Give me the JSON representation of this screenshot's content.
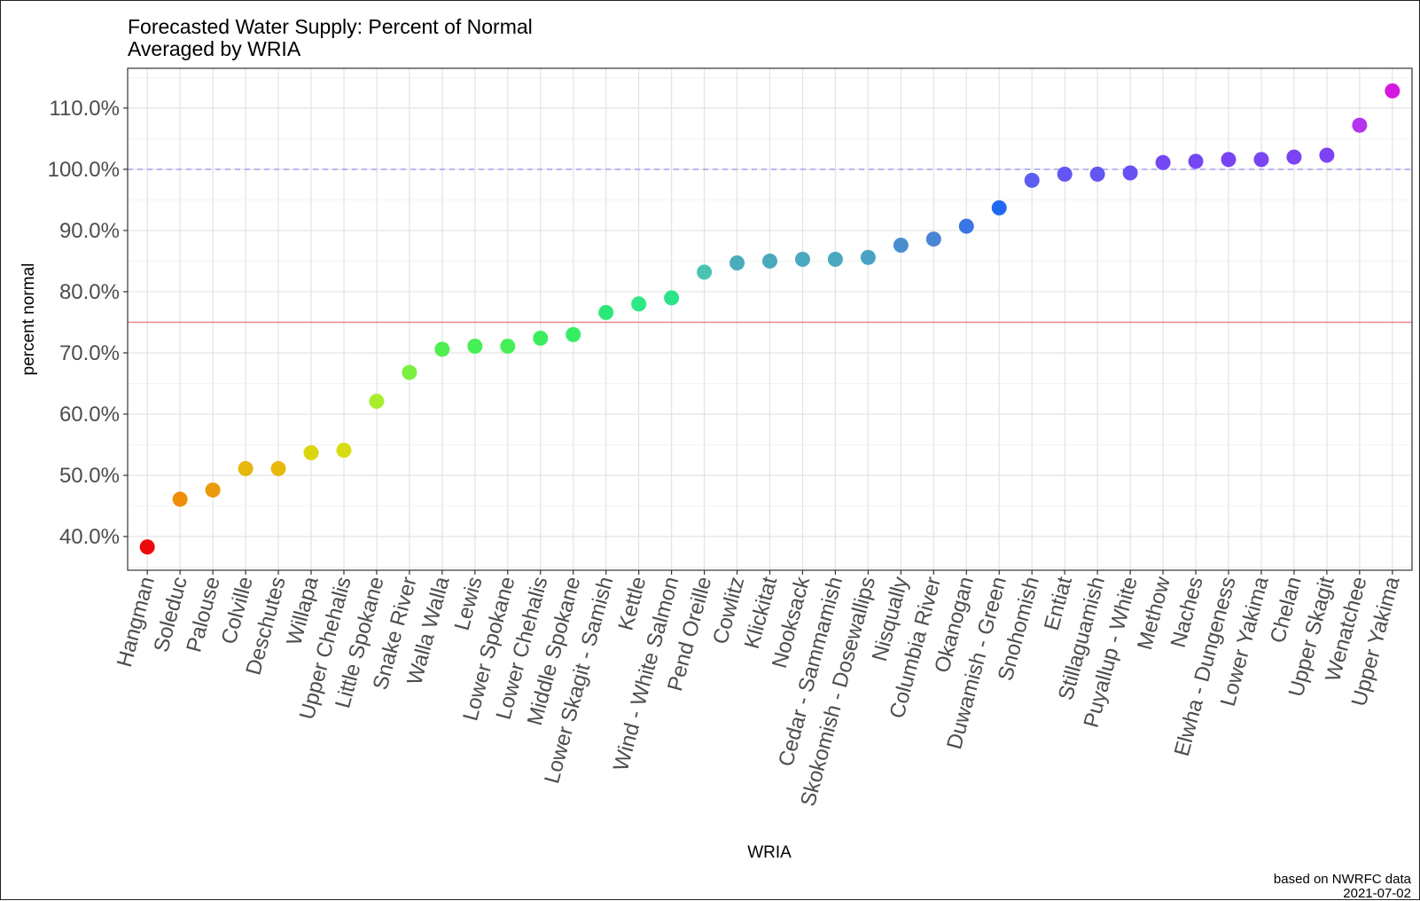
{
  "chart_data": {
    "type": "scatter",
    "title": "Forecasted Water Supply:  Percent of Normal",
    "subtitle": "Averaged by WRIA",
    "xlabel": "WRIA",
    "ylabel": "percent normal",
    "caption_line1": "based on NWRFC data",
    "caption_line2": "2021-07-02",
    "ylim": [
      34.5,
      116.5
    ],
    "yticks": [
      40,
      50,
      60,
      70,
      80,
      90,
      100,
      110
    ],
    "ytick_labels": [
      "40.0%",
      "50.0%",
      "60.0%",
      "70.0%",
      "80.0%",
      "90.0%",
      "100.0%",
      "110.0%"
    ],
    "reference_lines": [
      {
        "y": 100,
        "style": "dashed",
        "color": "#9a9af0"
      },
      {
        "y": 75,
        "style": "solid",
        "color": "#f08080"
      }
    ],
    "grid": true,
    "categories": [
      "Hangman",
      "Soleduc",
      "Palouse",
      "Colville",
      "Deschutes",
      "Willapa",
      "Upper Chehalis",
      "Little Spokane",
      "Snake River",
      "Walla Walla",
      "Lewis",
      "Lower Spokane",
      "Lower Chehalis",
      "Middle Spokane",
      "Lower Skagit - Samish",
      "Kettle",
      "Wind - White Salmon",
      "Pend Oreille",
      "Cowlitz",
      "Klickitat",
      "Nooksack",
      "Cedar - Sammamish",
      "Skokomish - Dosewallips",
      "Nisqually",
      "Columbia River",
      "Okanogan",
      "Duwamish - Green",
      "Snohomish",
      "Entiat",
      "Stillaguamish",
      "Puyallup - White",
      "Methow",
      "Naches",
      "Elwha - Dungeness",
      "Lower Yakima",
      "Chelan",
      "Upper Skagit",
      "Wenatchee",
      "Upper Yakima"
    ],
    "values": [
      38.3,
      46.1,
      47.6,
      51.1,
      51.1,
      53.7,
      54.1,
      62.1,
      66.8,
      70.6,
      71.1,
      71.1,
      72.4,
      73.0,
      76.6,
      78.0,
      79.0,
      83.2,
      84.7,
      85.0,
      85.3,
      85.3,
      85.6,
      87.6,
      88.6,
      90.7,
      93.7,
      98.2,
      99.2,
      99.2,
      99.4,
      101.1,
      101.3,
      101.6,
      101.6,
      102.0,
      102.3,
      107.2,
      112.8
    ],
    "colors": [
      "#ee0a0a",
      "#ef8e0a",
      "#eb9a0c",
      "#e6b80b",
      "#e6b80b",
      "#dcd60e",
      "#d9dc12",
      "#a8ee2d",
      "#79f042",
      "#4eef4e",
      "#45ef55",
      "#45ef55",
      "#3aee5e",
      "#36ee64",
      "#2ae878",
      "#2be985",
      "#2be389",
      "#4ac4b0",
      "#4aacbb",
      "#4aa9bd",
      "#4aa8c0",
      "#4aa8c0",
      "#4aa2c4",
      "#4a8ed0",
      "#4a84d6",
      "#3a77e4",
      "#1f69f2",
      "#5f5ef3",
      "#6356f3",
      "#6356f3",
      "#6652f3",
      "#7447f3",
      "#7646f3",
      "#7944f3",
      "#7944f3",
      "#7b43f3",
      "#7c42f3",
      "#b633ee",
      "#d51ae0"
    ]
  }
}
